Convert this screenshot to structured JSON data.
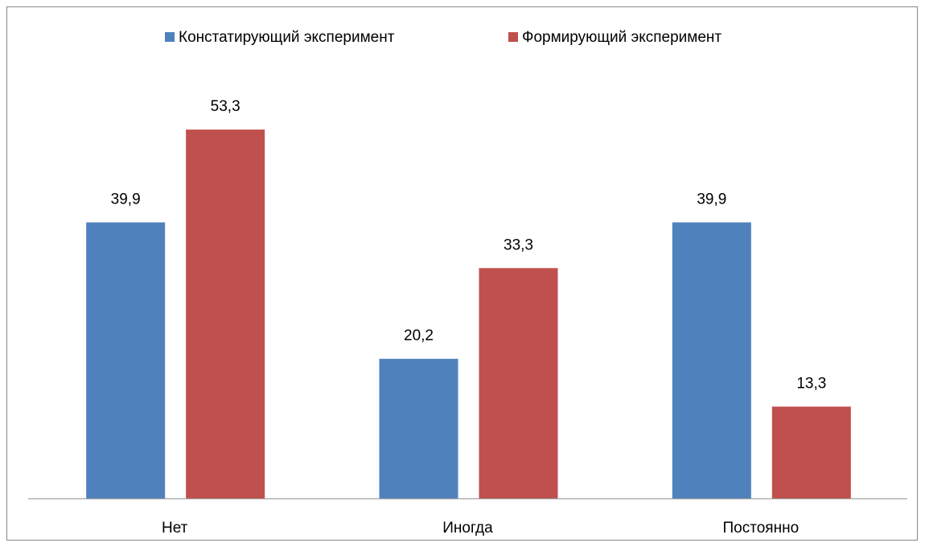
{
  "chart_data": {
    "type": "bar",
    "categories": [
      "Нет",
      "Иногда",
      "Постоянно"
    ],
    "series": [
      {
        "name": "Констатирующий эксперимент",
        "color": "#4f81bd",
        "values": [
          39.9,
          20.2,
          39.9
        ],
        "value_labels": [
          "39,9",
          "20,2",
          "39,9"
        ]
      },
      {
        "name": "Формирующий эксперимент",
        "color": "#c0504d",
        "values": [
          53.3,
          33.3,
          13.3
        ],
        "value_labels": [
          "53,3",
          "33,3",
          "13,3"
        ]
      }
    ],
    "ylim": [
      0,
      60
    ],
    "legend": "top"
  }
}
